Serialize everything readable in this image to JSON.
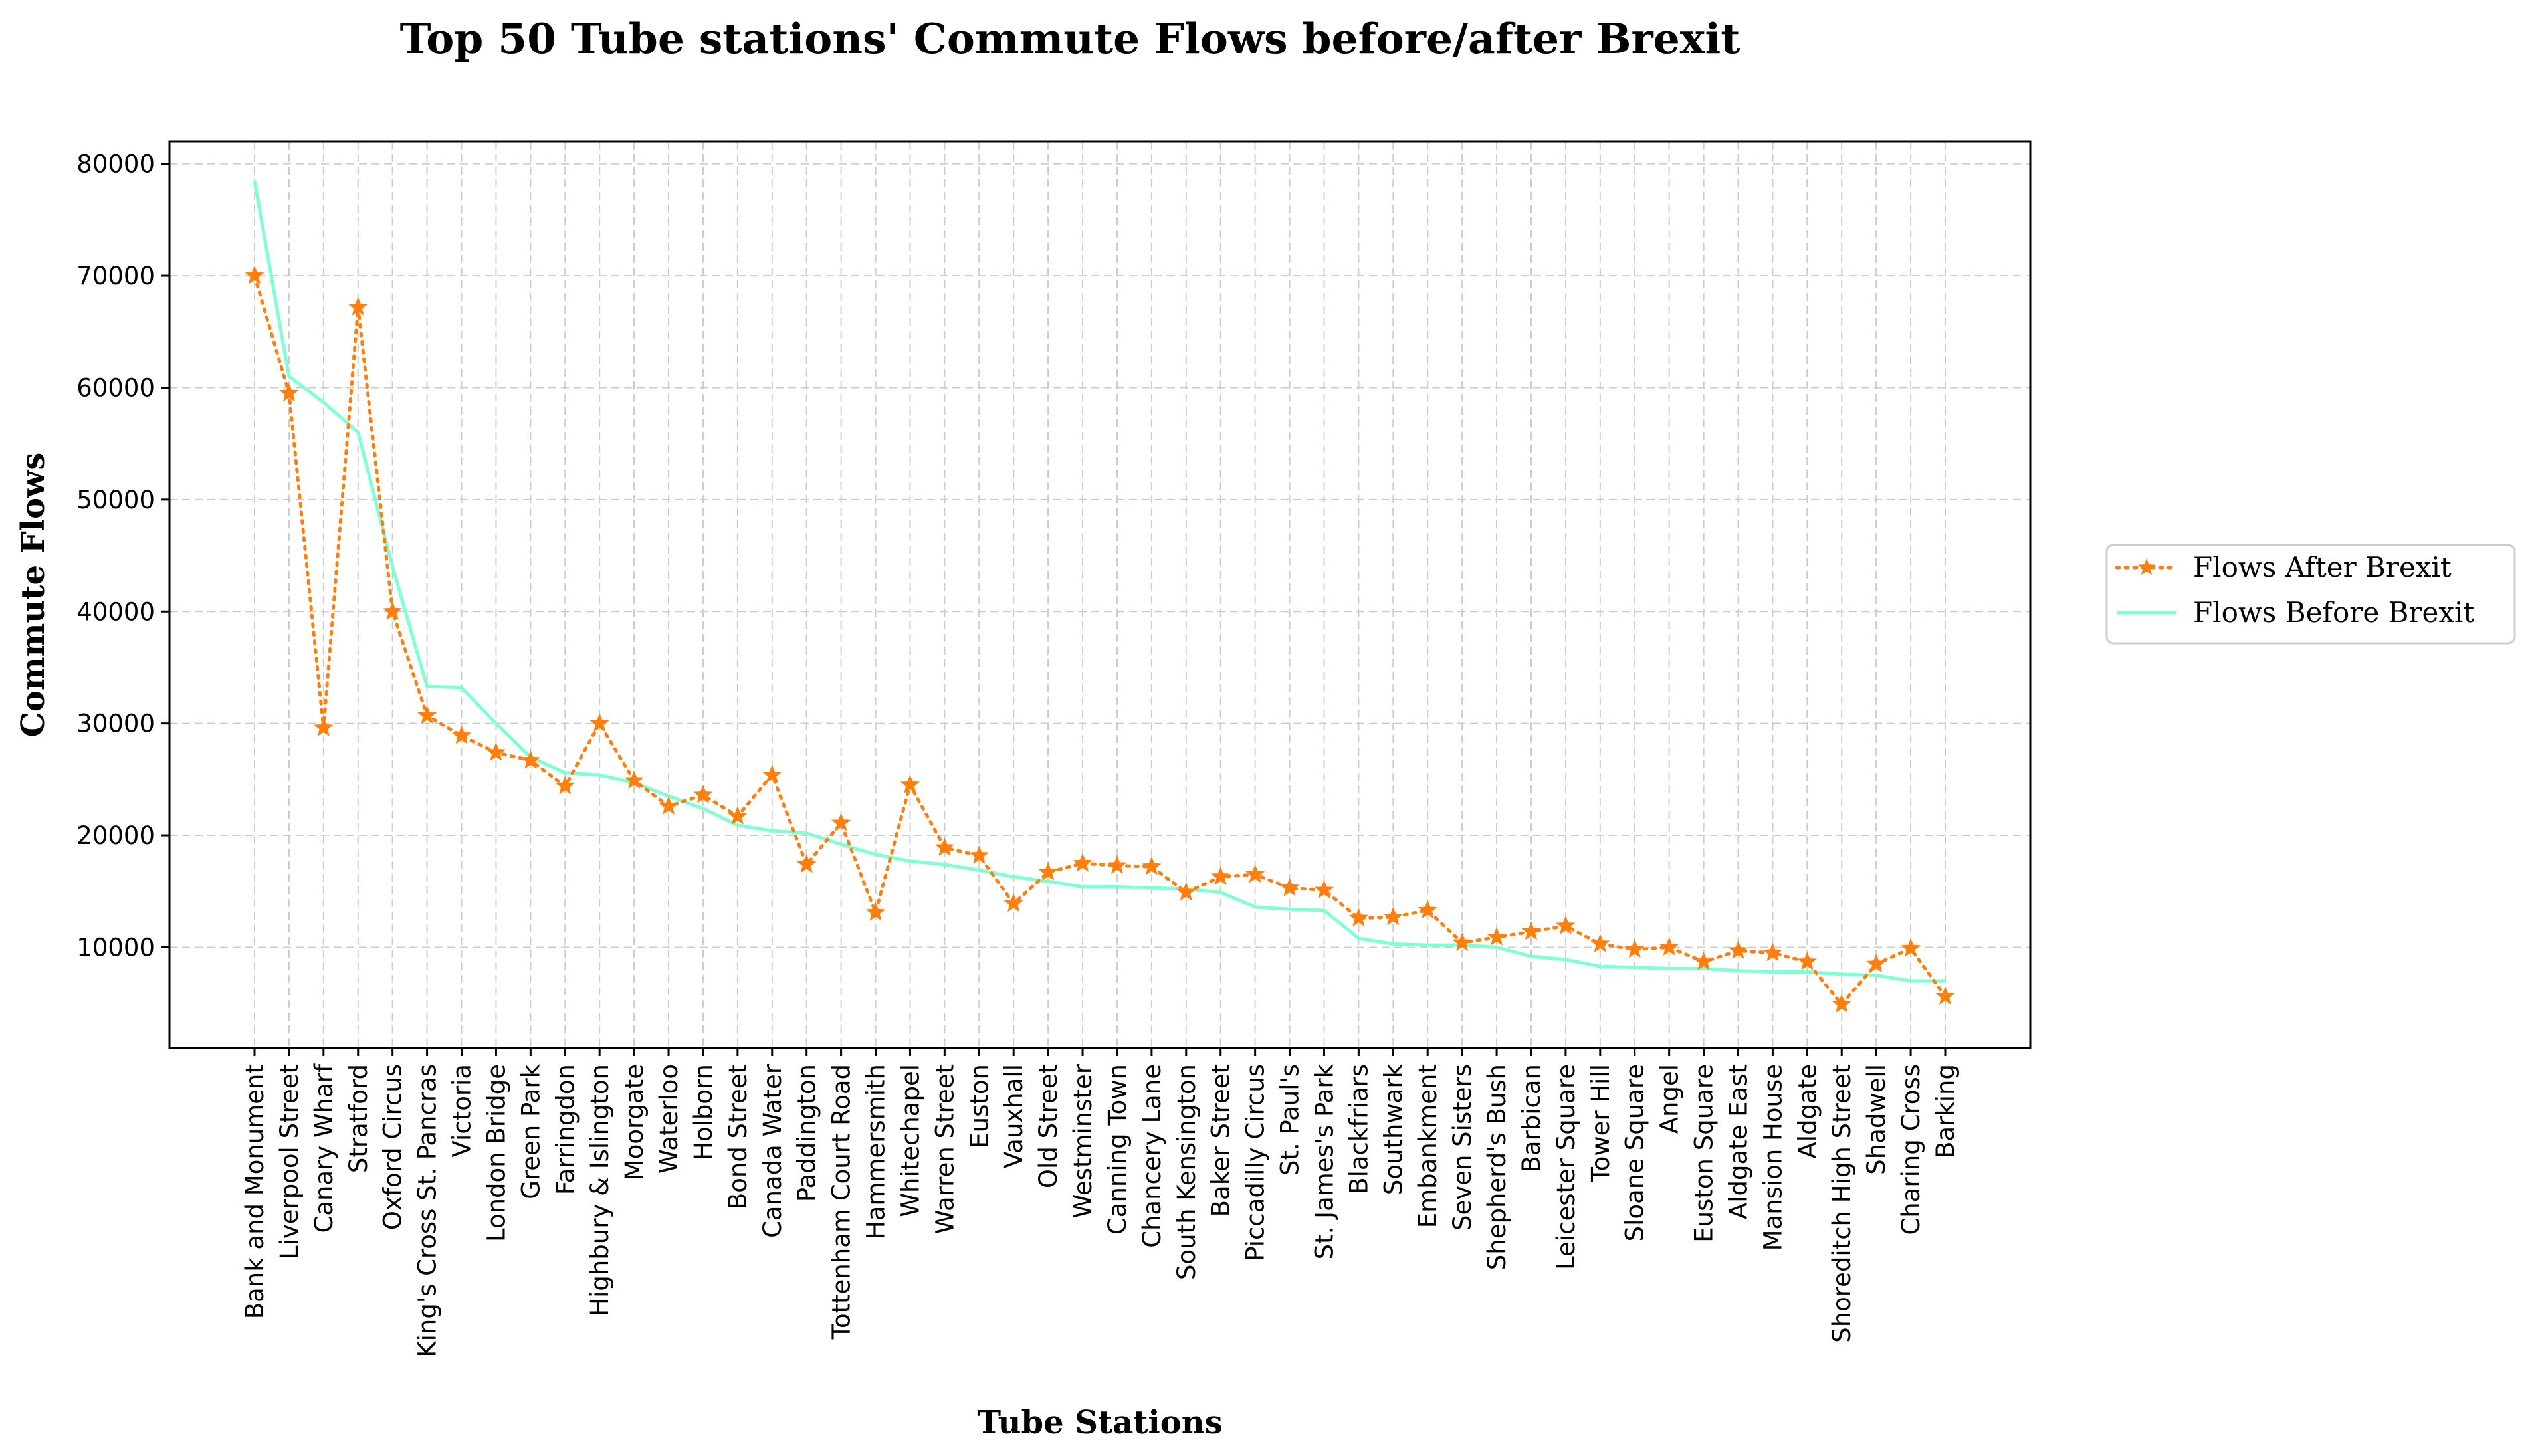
{
  "colors": {
    "after": "#ff7f0e",
    "before": "#7fffd4",
    "grid": "#cccccc",
    "axis": "#000000",
    "background": "#ffffff"
  },
  "chart_data": {
    "type": "line",
    "title": "Top 50 Tube stations' Commute Flows before/after Brexit",
    "xlabel": "Tube Stations",
    "ylabel": "Commute Flows",
    "ylim": [
      1000,
      82000
    ],
    "yticks": [
      10000,
      20000,
      30000,
      40000,
      50000,
      60000,
      70000,
      80000
    ],
    "grid": true,
    "legend_position": "outside-right",
    "categories": [
      "Bank and Monument",
      "Liverpool Street",
      "Canary Wharf",
      "Stratford",
      "Oxford Circus",
      "King's Cross St. Pancras",
      "Victoria",
      "London Bridge",
      "Green Park",
      "Farringdon",
      "Highbury & Islington",
      "Moorgate",
      "Waterloo",
      "Holborn",
      "Bond Street",
      "Canada Water",
      "Paddington",
      "Tottenham Court Road",
      "Hammersmith",
      "Whitechapel",
      "Warren Street",
      "Euston",
      "Vauxhall",
      "Old Street",
      "Westminster",
      "Canning Town",
      "Chancery Lane",
      "South Kensington",
      "Baker Street",
      "Piccadilly Circus",
      "St. Paul's",
      "St. James's Park",
      "Blackfriars",
      "Southwark",
      "Embankment",
      "Seven Sisters",
      "Shepherd's Bush",
      "Barbican",
      "Leicester Square",
      "Tower Hill",
      "Sloane Square",
      "Angel",
      "Euston Square",
      "Aldgate East",
      "Mansion House",
      "Aldgate",
      "Shoreditch High Street",
      "Shadwell",
      "Charing Cross",
      "Barking"
    ],
    "series": [
      {
        "name": "Flows After Brexit",
        "style": "dotted-star",
        "values": [
          70000,
          59500,
          29600,
          67200,
          40000,
          30700,
          28900,
          27400,
          26700,
          24400,
          30000,
          24900,
          22600,
          23600,
          21700,
          25400,
          17400,
          21100,
          13100,
          24500,
          18900,
          18200,
          13900,
          16700,
          17500,
          17300,
          17200,
          14900,
          16300,
          16500,
          15300,
          15100,
          12600,
          12700,
          13300,
          10400,
          10900,
          11400,
          11900,
          10300,
          9800,
          10000,
          8700,
          9700,
          9500,
          8700,
          4900,
          8500,
          9900,
          5600
        ]
      },
      {
        "name": "Flows Before Brexit",
        "style": "solid",
        "values": [
          78500,
          61000,
          58700,
          56000,
          44000,
          33300,
          33200,
          30000,
          27000,
          25600,
          25400,
          24700,
          23500,
          22400,
          20900,
          20400,
          20200,
          19200,
          18300,
          17700,
          17400,
          16900,
          16300,
          15900,
          15400,
          15400,
          15300,
          15200,
          14900,
          13600,
          13400,
          13300,
          10800,
          10300,
          10200,
          10200,
          10000,
          9200,
          8900,
          8300,
          8200,
          8100,
          8100,
          7900,
          7800,
          7800,
          7600,
          7500,
          7000,
          7000
        ]
      }
    ]
  }
}
